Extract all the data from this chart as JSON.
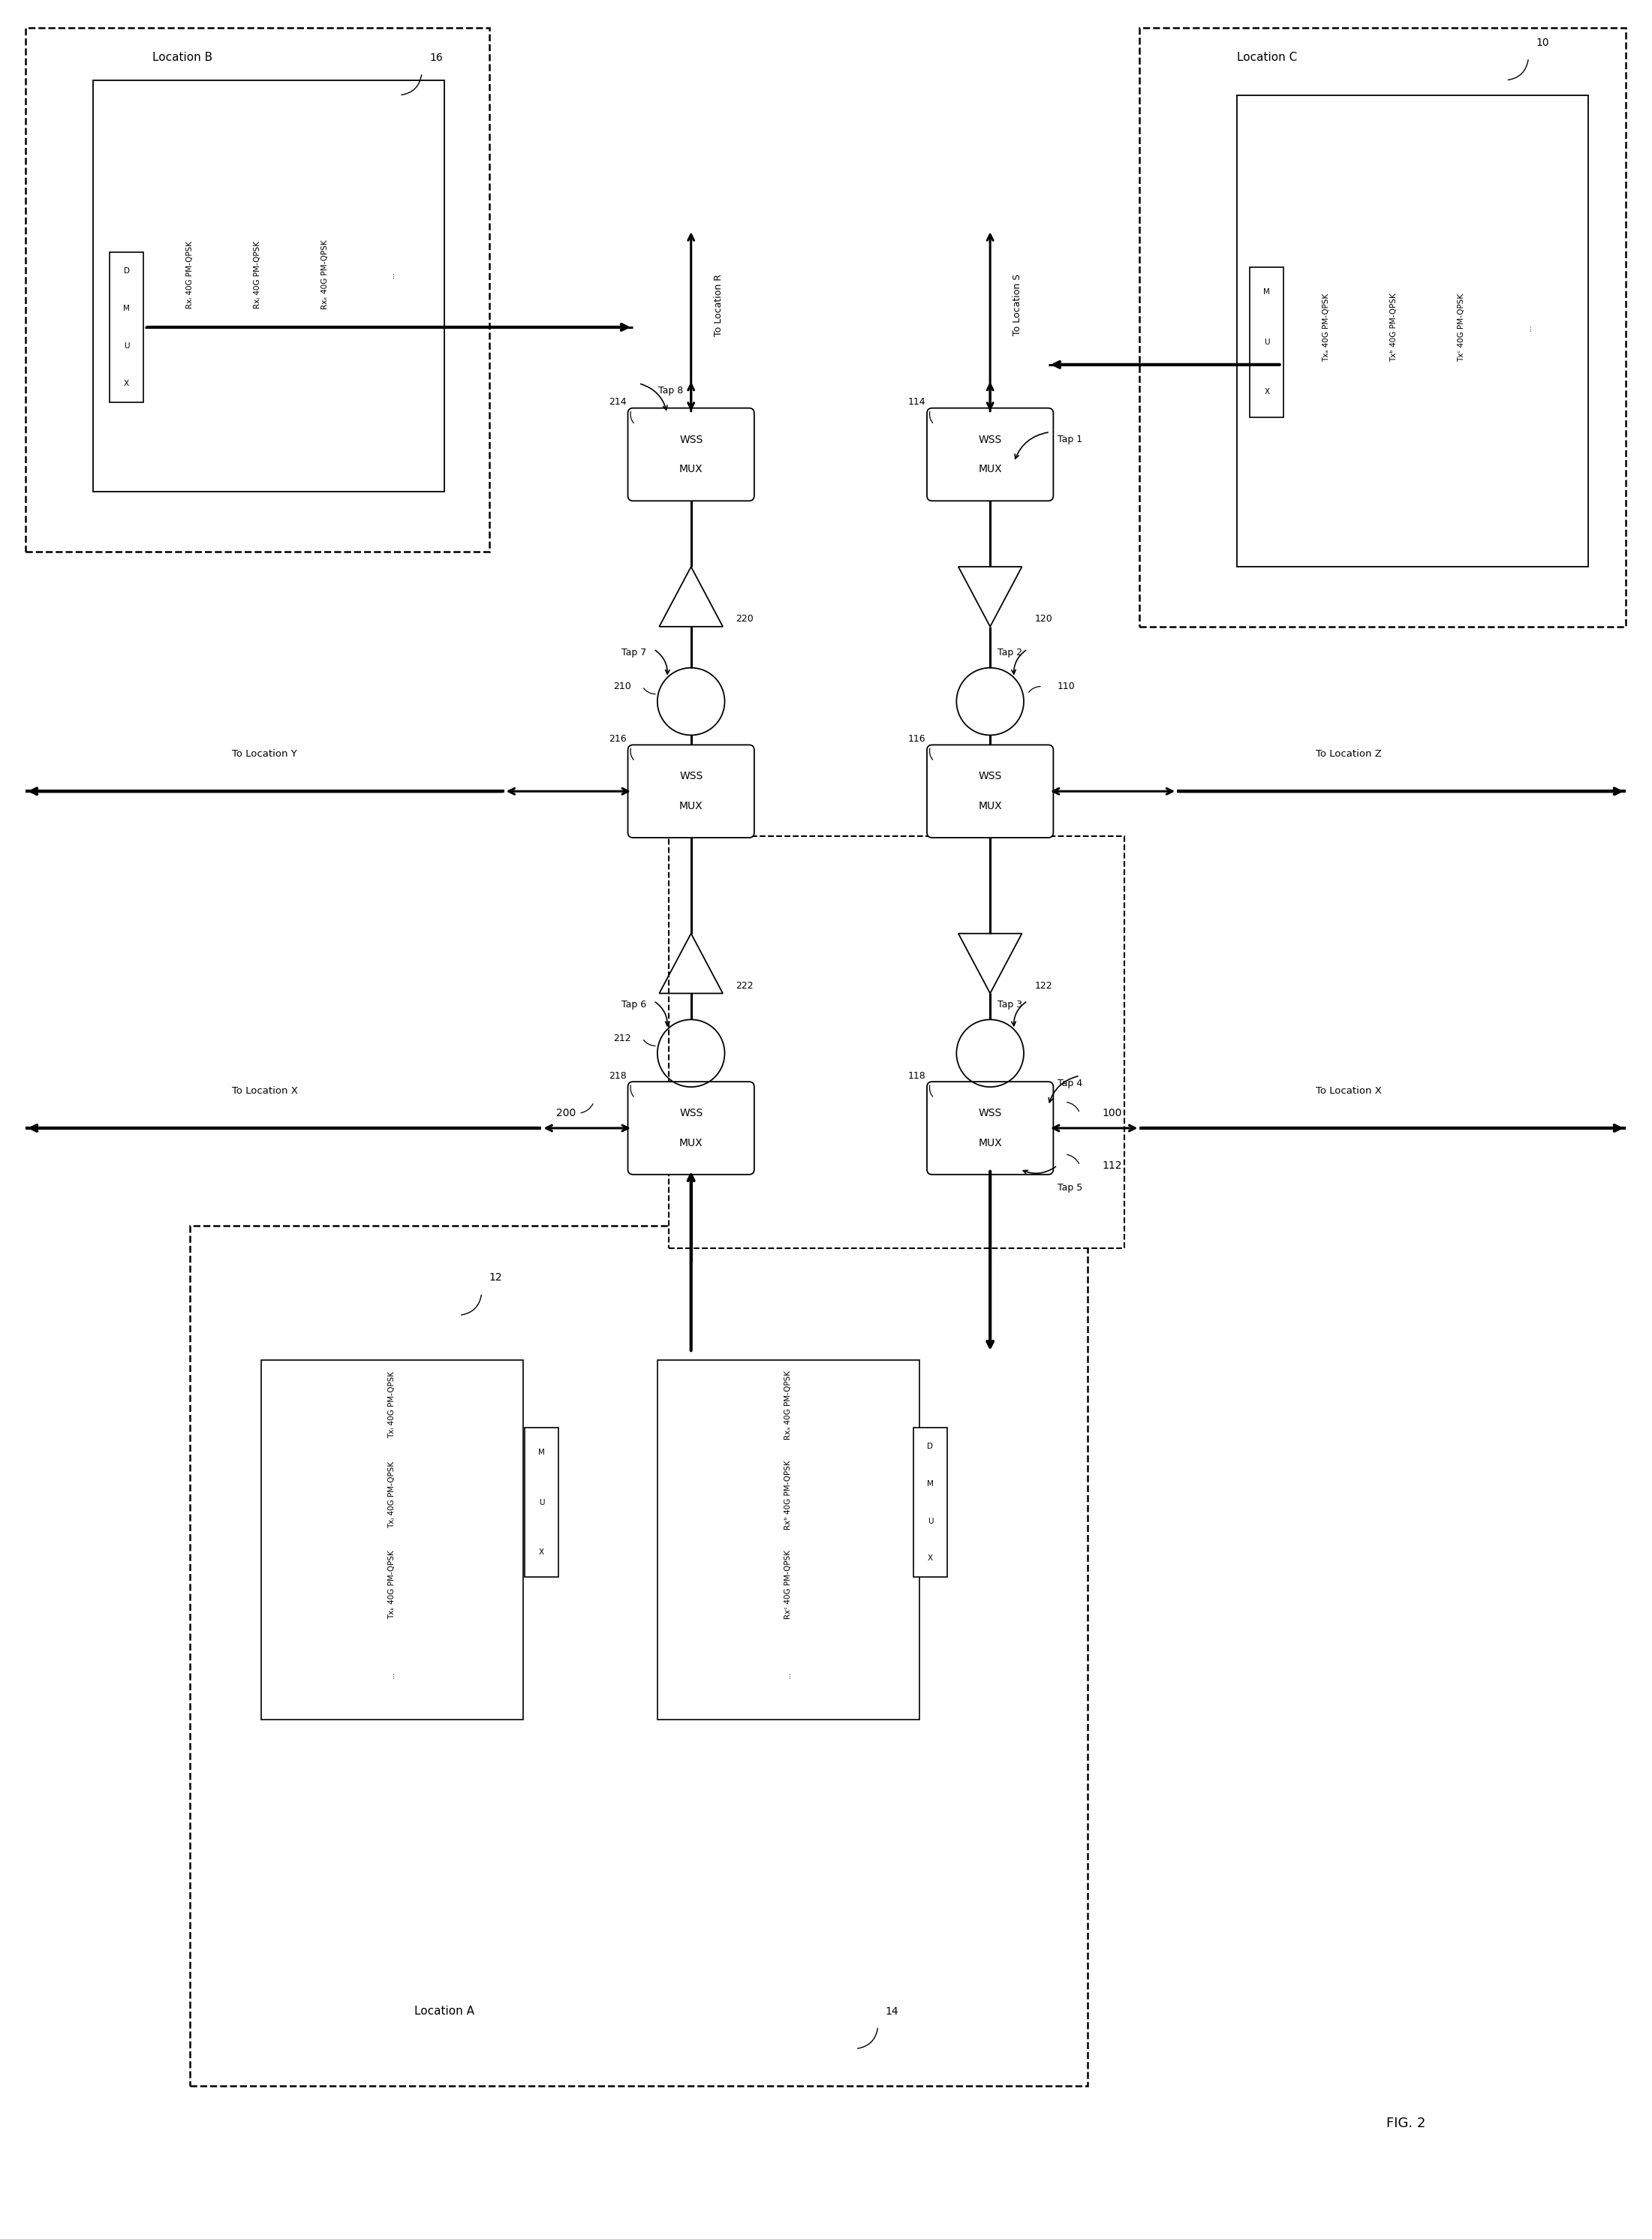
{
  "fig_width": 22.01,
  "fig_height": 29.83,
  "bg_color": "#ffffff",
  "fig_label": "FIG. 2",
  "loc_A_label": "Location A",
  "loc_B_label": "Location B",
  "loc_C_label": "Location C",
  "loc_A_ref": "12",
  "loc_A_rx_ref": "14",
  "loc_B_ref": "16",
  "loc_C_ref": "10",
  "node_100": "100",
  "node_200": "200",
  "node_112": "112",
  "wss_nums": [
    "214",
    "114",
    "216",
    "116",
    "218",
    "118"
  ],
  "amp_nums": [
    "220",
    "120",
    "222",
    "122"
  ],
  "tap_labels": [
    "Tap 1",
    "Tap 2",
    "Tap 3",
    "Tap 4",
    "Tap 5",
    "Tap 6",
    "Tap 7",
    "Tap 8"
  ],
  "circ_nums": [
    "210",
    "110",
    "212",
    "112_c"
  ],
  "to_loc_R": "To Location R",
  "to_loc_S": "To Location S",
  "to_loc_X_left": "To Location X",
  "to_loc_X_right": "To Location X",
  "to_loc_Y": "To Location Y",
  "to_loc_Z": "To Location Z",
  "tx_a_lines": [
    "Txᵢ 40G PM-QPSK",
    "Txⱼ 40G PM-QPSK",
    "Txₖ 40G PM-QPSK",
    "..."
  ],
  "rx_a_lines": [
    "Rxₐ 40G PM-QPSK",
    "Rxᵇ 40G PM-QPSK",
    "Rxᶜ 40G PM-QPSK",
    "..."
  ],
  "rx_b_lines": [
    "Rxᵢ 40G PM-QPSK",
    "Rxⱼ 40G PM-QPSK",
    "Rxₖ 40G PM-QPSK",
    "..."
  ],
  "tx_c_lines": [
    "Txₐ 40G PM-QPSK",
    "Txᵇ 40G PM-QPSK",
    "Txᶜ 40G PM-QPSK",
    "..."
  ],
  "wss_label_top": "WSS",
  "wss_label_bot": "MUX"
}
